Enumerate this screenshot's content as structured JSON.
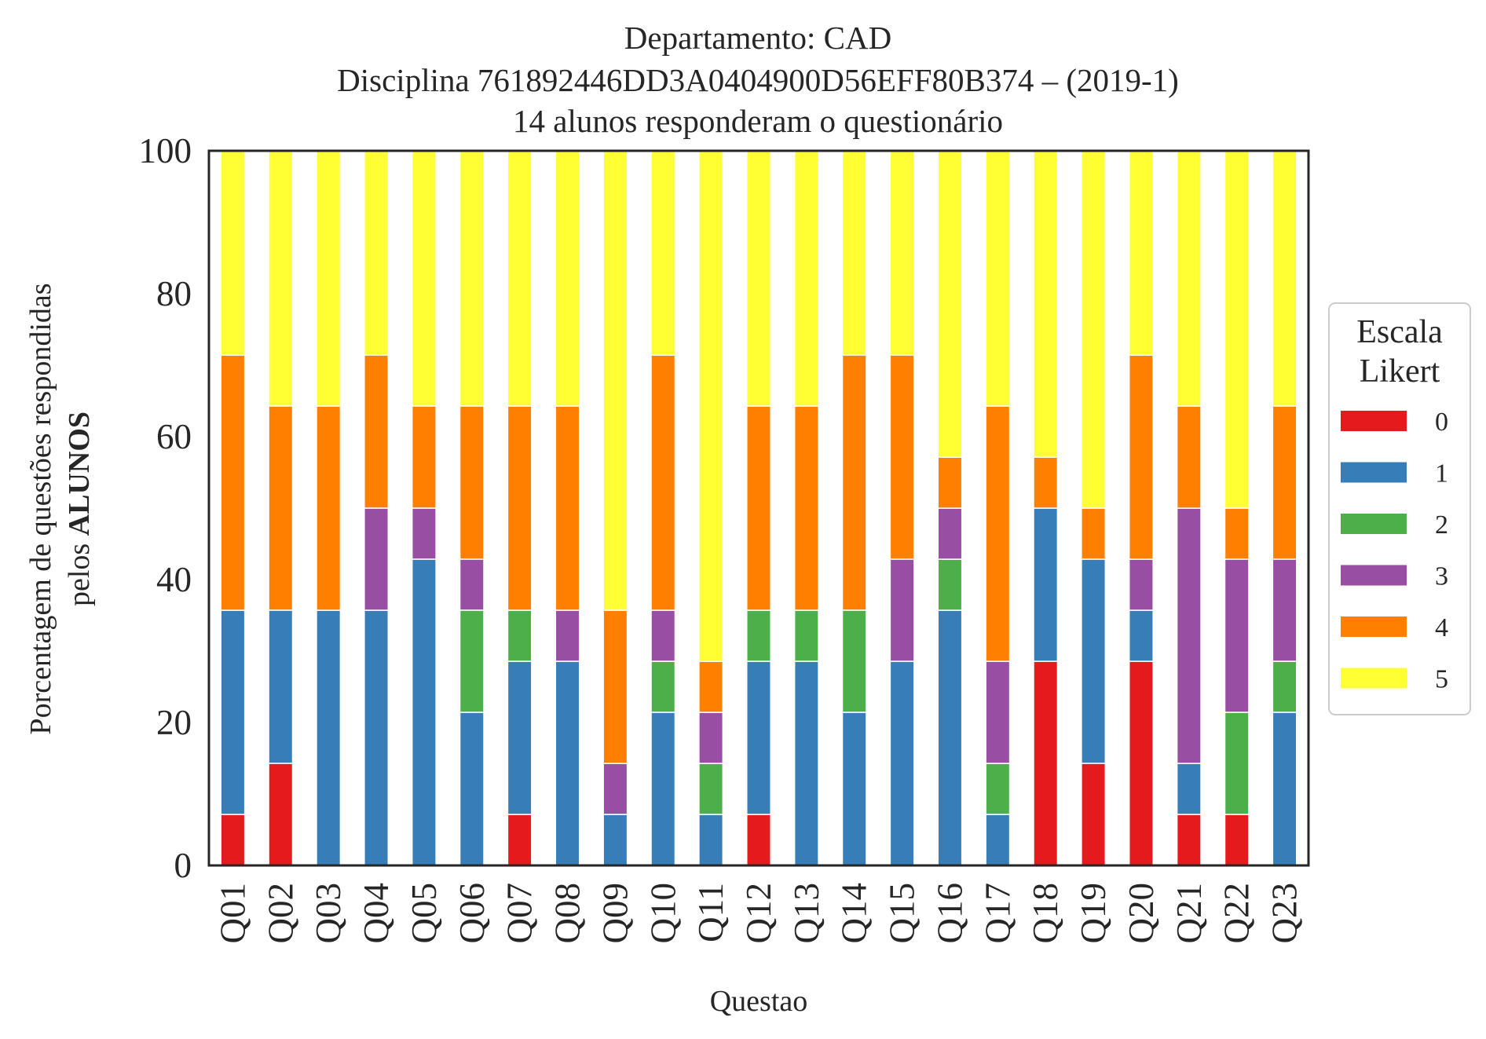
{
  "chart_data": {
    "type": "bar",
    "stacked": true,
    "title": [
      "Departamento: CAD",
      "Disciplina 761892446DD3A0404900D56EFF80B374 – (2019-1)",
      "14 alunos responderam o questionário"
    ],
    "xlabel": "Questao",
    "ylabel": {
      "line1": "Porcentagem de questões respondidas",
      "line2_prefix": "pelos ",
      "line2_bold": "ALUNOS"
    },
    "ylim": [
      0,
      100
    ],
    "yticks": [
      0,
      20,
      40,
      60,
      80,
      100
    ],
    "grid": false,
    "legend": {
      "title": [
        "Escala",
        "Likert"
      ],
      "position": "center-right, outside"
    },
    "categories": [
      "Q01",
      "Q02",
      "Q03",
      "Q04",
      "Q05",
      "Q06",
      "Q07",
      "Q08",
      "Q09",
      "Q10",
      "Q11",
      "Q12",
      "Q13",
      "Q14",
      "Q15",
      "Q16",
      "Q17",
      "Q18",
      "Q19",
      "Q20",
      "Q21",
      "Q22",
      "Q23"
    ],
    "series": [
      {
        "name": "0",
        "color": "#e41a1c",
        "values": [
          7.14,
          14.29,
          0,
          0,
          0,
          0,
          7.14,
          0,
          0,
          0,
          0,
          7.14,
          0,
          0,
          0,
          0,
          0,
          28.57,
          14.29,
          28.57,
          7.14,
          7.14,
          0
        ]
      },
      {
        "name": "1",
        "color": "#377eb8",
        "values": [
          28.57,
          21.43,
          35.71,
          35.71,
          42.86,
          21.43,
          21.43,
          28.57,
          7.14,
          21.43,
          7.14,
          21.43,
          28.57,
          21.43,
          28.57,
          35.71,
          7.14,
          21.43,
          28.57,
          7.14,
          7.14,
          0,
          21.43
        ]
      },
      {
        "name": "2",
        "color": "#4daf4a",
        "values": [
          0,
          0,
          0,
          0,
          0,
          14.29,
          7.14,
          0,
          0,
          7.14,
          7.14,
          7.14,
          7.14,
          14.29,
          0,
          7.14,
          7.14,
          0,
          0,
          0,
          0,
          14.29,
          7.14
        ]
      },
      {
        "name": "3",
        "color": "#984ea3",
        "values": [
          0,
          0,
          0,
          14.29,
          7.14,
          7.14,
          0,
          7.14,
          7.14,
          7.14,
          7.14,
          0,
          0,
          0,
          14.29,
          7.14,
          14.29,
          0,
          0,
          7.14,
          35.71,
          21.43,
          14.29
        ]
      },
      {
        "name": "4",
        "color": "#ff7f00",
        "values": [
          35.71,
          28.57,
          28.57,
          21.43,
          14.29,
          21.43,
          28.57,
          28.57,
          21.43,
          35.71,
          7.14,
          28.57,
          28.57,
          35.71,
          28.57,
          7.14,
          35.71,
          7.14,
          7.14,
          28.57,
          14.29,
          7.14,
          21.43
        ]
      },
      {
        "name": "5",
        "color": "#ffff33",
        "values": [
          28.57,
          35.71,
          35.71,
          28.57,
          35.71,
          35.71,
          35.71,
          35.71,
          64.29,
          28.57,
          71.43,
          35.71,
          35.71,
          28.57,
          28.57,
          42.86,
          35.71,
          42.86,
          50.0,
          28.57,
          35.71,
          50.0,
          35.71
        ]
      }
    ]
  }
}
